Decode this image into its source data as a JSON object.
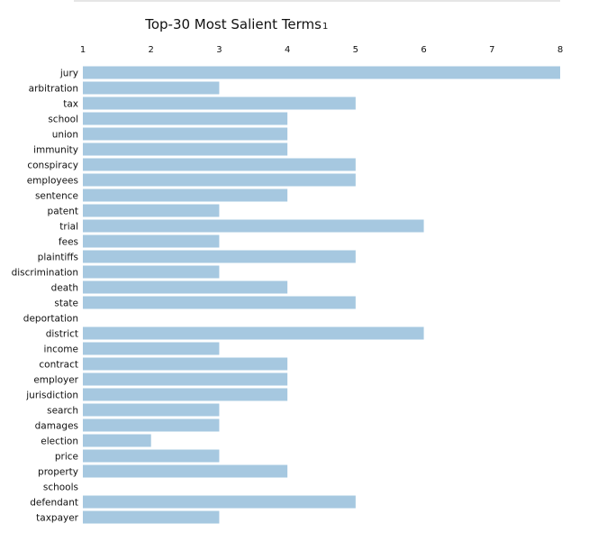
{
  "chart_data": {
    "type": "bar",
    "orientation": "horizontal",
    "title": "Top-30 Most Salient Terms",
    "title_superscript": "1",
    "xlabel": "",
    "ylabel": "",
    "xlim": [
      1,
      8
    ],
    "xticks": [
      1,
      2,
      3,
      4,
      5,
      6,
      7,
      8
    ],
    "x_axis_position": "top",
    "grid": false,
    "bar_color": "#a6c8e0",
    "categories": [
      "jury",
      "arbitration",
      "tax",
      "school",
      "union",
      "immunity",
      "conspiracy",
      "employees",
      "sentence",
      "patent",
      "trial",
      "fees",
      "plaintiffs",
      "discrimination",
      "death",
      "state",
      "deportation",
      "district",
      "income",
      "contract",
      "employer",
      "jurisdiction",
      "search",
      "damages",
      "election",
      "price",
      "property",
      "schools",
      "defendant",
      "taxpayer"
    ],
    "values": [
      8,
      3,
      5,
      4,
      4,
      4,
      5,
      5,
      4,
      3,
      6,
      3,
      5,
      3,
      4,
      5,
      1,
      6,
      3,
      4,
      4,
      4,
      3,
      3,
      2,
      3,
      4,
      1,
      5,
      3
    ]
  }
}
